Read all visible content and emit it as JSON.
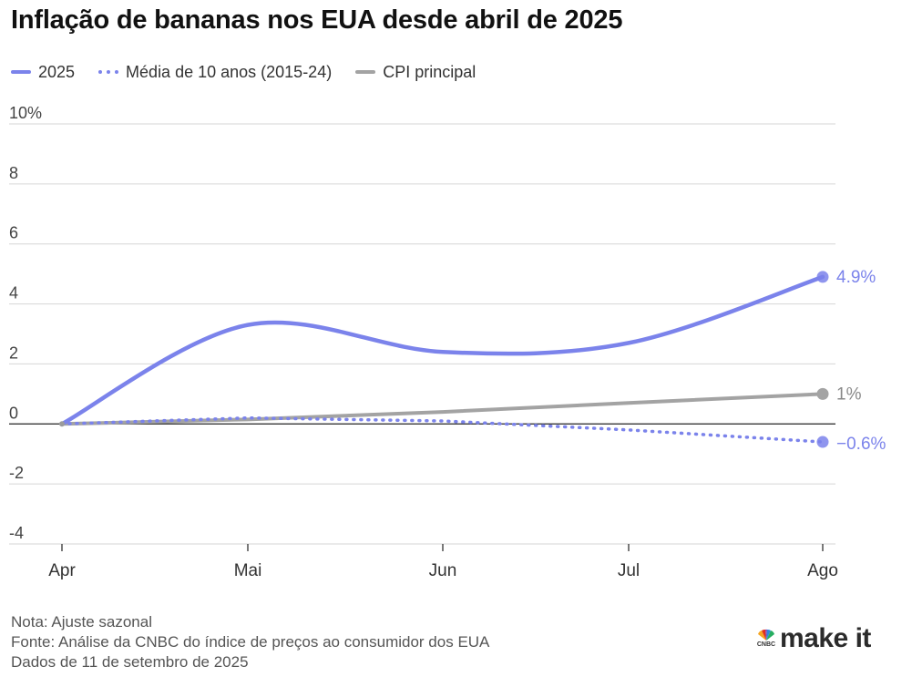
{
  "title": "Inflação de bananas nos EUA desde abril de 2025",
  "legend": [
    {
      "label": "2025",
      "style": "solid",
      "color": "#7b83eb"
    },
    {
      "label": "Média de 10 anos (2015-24)",
      "style": "dotted",
      "color": "#7b83eb"
    },
    {
      "label": "CPI principal",
      "style": "solid",
      "color": "#a3a3a3"
    }
  ],
  "chart_data": {
    "type": "line",
    "categories": [
      "Apr",
      "Mai",
      "Jun",
      "Jul",
      "Ago"
    ],
    "ylim": [
      -4,
      10
    ],
    "yticks": [
      10,
      8,
      6,
      4,
      2,
      0,
      -2,
      -4
    ],
    "ytick_labels": [
      "10%",
      "8",
      "6",
      "4",
      "2",
      "0",
      "-2",
      "-4"
    ],
    "grid": true,
    "legend_position": "top-left",
    "series": [
      {
        "name": "2025",
        "style": "solid",
        "color": "#7b83eb",
        "values": [
          0,
          3.3,
          2.4,
          2.7,
          4.9
        ],
        "end_label": "4.9%"
      },
      {
        "name": "Média de 10 anos (2015-24)",
        "style": "dotted",
        "color": "#7b83eb",
        "values": [
          0,
          0.2,
          0.1,
          -0.2,
          -0.6
        ],
        "end_label": "−0.6%"
      },
      {
        "name": "CPI principal",
        "style": "solid",
        "color": "#a3a3a3",
        "values": [
          0,
          0.15,
          0.4,
          0.7,
          1.0
        ],
        "end_label": "1%"
      }
    ]
  },
  "notes": {
    "line1": "Nota: Ajuste sazonal",
    "line2": "Fonte: Análise da CNBC do índice de preços ao consumidor dos EUA",
    "line3": "Dados de 11 de setembro de 2025"
  },
  "brand": {
    "text": "make it",
    "small": "CNBC",
    "icon": "peacock-icon"
  }
}
